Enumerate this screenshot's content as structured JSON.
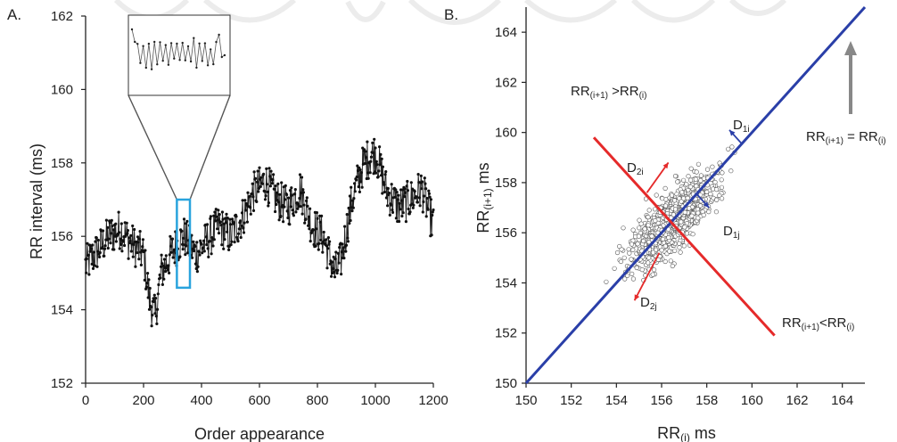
{
  "chart_data": [
    {
      "panel_label": "A.",
      "type": "line",
      "xlabel": "Order appearance",
      "ylabel": "RR interval (ms)",
      "xlim": [
        0,
        1200
      ],
      "ylim": [
        152,
        162
      ],
      "xticks": [
        0,
        200,
        400,
        600,
        800,
        1000,
        1200
      ],
      "yticks": [
        152,
        154,
        156,
        158,
        160,
        162
      ],
      "marker": "filled-dot",
      "line_color": "#222222",
      "highlight": {
        "x_range": [
          315,
          360
        ],
        "y_range": [
          154.6,
          157.0
        ],
        "color": "#29a3dd"
      },
      "series_anchors": {
        "x": [
          0,
          40,
          80,
          120,
          160,
          200,
          220,
          240,
          260,
          300,
          340,
          380,
          420,
          460,
          500,
          540,
          580,
          620,
          660,
          700,
          740,
          780,
          820,
          860,
          880,
          920,
          960,
          1000,
          1040,
          1080,
          1120,
          1160,
          1200
        ],
        "y": [
          155.2,
          155.6,
          156.0,
          156.2,
          155.8,
          155.5,
          154.3,
          153.8,
          155.0,
          155.6,
          156.0,
          155.5,
          155.9,
          156.3,
          156.0,
          156.5,
          157.2,
          157.5,
          157.0,
          156.8,
          157.3,
          156.3,
          156.0,
          155.0,
          155.3,
          157.0,
          158.0,
          158.3,
          157.2,
          156.8,
          157.0,
          157.3,
          156.3
        ]
      },
      "noise_amplitude": 0.55,
      "grid": false
    },
    {
      "panel_label": "B.",
      "type": "scatter",
      "xlabel": "RR(i) ms",
      "ylabel": "RR(i+1) ms",
      "xlim": [
        150,
        165
      ],
      "ylim": [
        150,
        165
      ],
      "xticks": [
        150,
        152,
        154,
        156,
        158,
        160,
        162,
        164
      ],
      "yticks": [
        150,
        152,
        154,
        156,
        158,
        160,
        162,
        164
      ],
      "marker": "open-circle",
      "center": [
        156.5,
        156.5
      ],
      "sd_major": 1.15,
      "sd_minor": 0.38,
      "n_points": 1200,
      "identity_line": {
        "from": [
          150,
          150
        ],
        "to": [
          165,
          165
        ],
        "color": "#2a3fa8"
      },
      "perpendicular_line": {
        "from": [
          153,
          159.8
        ],
        "to": [
          161,
          151.9
        ],
        "color": "#e52a2a"
      },
      "grid": false
    }
  ],
  "annotations": {
    "identity_label": {
      "main1": "RR",
      "sub1": "(i+1)",
      "mid": " = RR",
      "sub2": "(i)"
    },
    "above_label": {
      "main1": "RR",
      "sub1": "(i+1)",
      "mid": " >RR",
      "sub2": "(i)"
    },
    "below_label": {
      "main1": "RR",
      "sub1": "(i+1)",
      "mid": "<RR",
      "sub2": "(i)"
    },
    "d1i": {
      "main": "D",
      "sub": "1i"
    },
    "d1j": {
      "main": "D",
      "sub": "1j"
    },
    "d2i": {
      "main": "D",
      "sub": "2i"
    },
    "d2j": {
      "main": "D",
      "sub": "2j"
    },
    "ylabel_b": {
      "main": "RR",
      "sub": "(i+1)",
      "rest": " ms"
    },
    "xlabel_b": {
      "main": "RR",
      "sub": "(i)",
      "rest": " ms"
    }
  },
  "colors": {
    "identity": "#2a3fa8",
    "perpendicular": "#e52a2a",
    "highlight": "#29a3dd",
    "arrow": "#888888"
  }
}
